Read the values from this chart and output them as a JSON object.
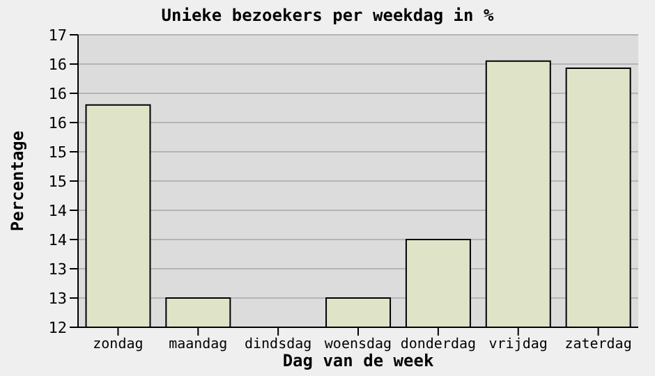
{
  "chart_data": {
    "type": "bar",
    "title": "Unieke bezoekers per weekdag in %",
    "xlabel": "Dag van de week",
    "ylabel": "Percentage",
    "categories": [
      "zondag",
      "maandag",
      "dindsdag",
      "woensdag",
      "donderdag",
      "vrijdag",
      "zaterdag"
    ],
    "values": [
      15.8,
      12.5,
      12,
      12.5,
      13.5,
      16.55,
      16.43
    ],
    "color": "#dfe4c9",
    "ylim": [
      12,
      17
    ],
    "yticks": [
      12,
      {
        "value": 12.5,
        "label": "13"
      },
      13,
      {
        "value": 13.5,
        "label": "14"
      },
      14,
      {
        "value": 14.5,
        "label": "15"
      },
      15,
      {
        "value": 15.5,
        "label": "16"
      },
      16,
      {
        "value": 16.5,
        "label": "16"
      },
      17
    ],
    "grid": "y"
  }
}
